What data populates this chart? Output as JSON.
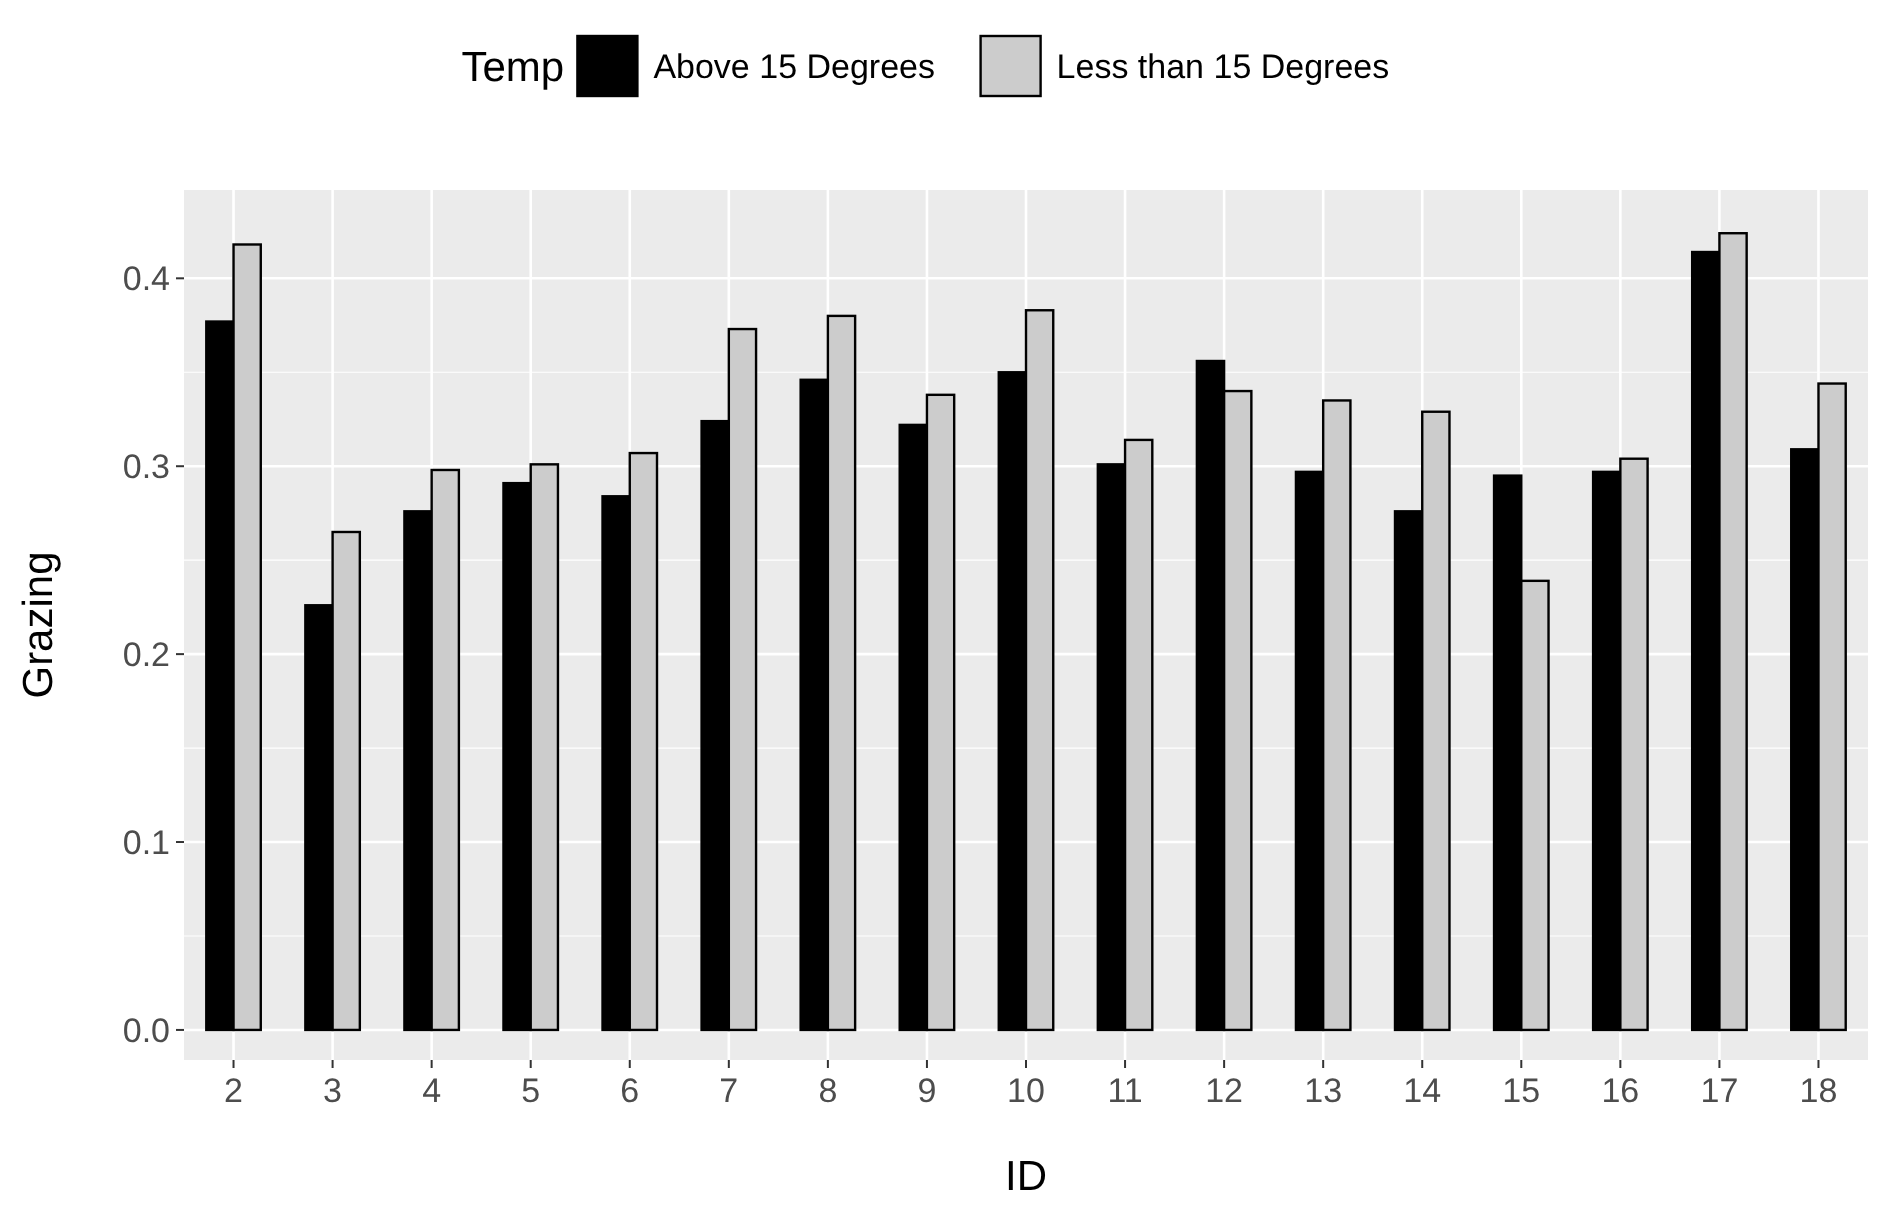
{
  "chart_data": {
    "type": "bar",
    "xlabel": "ID",
    "ylabel": "Grazing",
    "legend_title": "Temp",
    "legend": "top",
    "categories": [
      "2",
      "3",
      "4",
      "5",
      "6",
      "7",
      "8",
      "9",
      "10",
      "11",
      "12",
      "13",
      "14",
      "15",
      "16",
      "17",
      "18"
    ],
    "series": [
      {
        "name": "Above 15 Degrees",
        "color": "#000000",
        "values": [
          0.377,
          0.226,
          0.276,
          0.291,
          0.284,
          0.324,
          0.346,
          0.322,
          0.35,
          0.301,
          0.356,
          0.297,
          0.276,
          0.295,
          0.297,
          0.414,
          0.309
        ]
      },
      {
        "name": "Less than 15 Degrees",
        "color": "#cccccc",
        "values": [
          0.418,
          0.265,
          0.298,
          0.301,
          0.307,
          0.373,
          0.38,
          0.338,
          0.383,
          0.314,
          0.34,
          0.335,
          0.329,
          0.239,
          0.304,
          0.424,
          0.344
        ]
      }
    ],
    "ylim": [
      -0.016,
      0.447
    ],
    "yticks": [
      {
        "value": 0,
        "label": "0.0"
      },
      0.1,
      0.2,
      0.3,
      0.4
    ],
    "grid": true
  }
}
